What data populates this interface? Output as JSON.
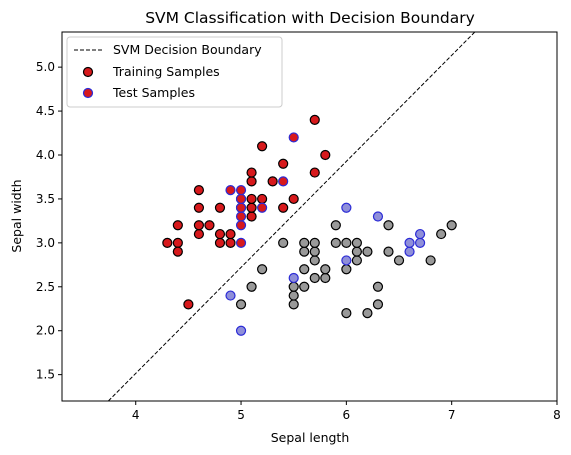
{
  "chart_data": {
    "type": "scatter",
    "title": "SVM Classification with Decision Boundary",
    "xlabel": "Sepal length",
    "ylabel": "Sepal width",
    "xlim": [
      3.3,
      8.0
    ],
    "ylim": [
      1.2,
      5.4
    ],
    "xticks": [
      4,
      5,
      6,
      7,
      8
    ],
    "yticks": [
      1.5,
      2.0,
      2.5,
      3.0,
      3.5,
      4.0,
      4.5,
      5.0
    ],
    "grid": false,
    "legend_position": "top-left",
    "decision_boundary": {
      "name": "SVM Decision Boundary",
      "style": "dashed",
      "color": "#000000",
      "points": [
        [
          3.74,
          1.2
        ],
        [
          7.22,
          5.4
        ]
      ]
    },
    "series": [
      {
        "name": "Training Samples",
        "edge_color": "#000000",
        "classes": [
          {
            "color": "#d7191c",
            "points": [
              [
                4.3,
                3.0
              ],
              [
                4.4,
                3.0
              ],
              [
                4.4,
                2.9
              ],
              [
                4.4,
                3.2
              ],
              [
                4.5,
                2.3
              ],
              [
                4.6,
                3.1
              ],
              [
                4.6,
                3.2
              ],
              [
                4.6,
                3.4
              ],
              [
                4.6,
                3.6
              ],
              [
                4.7,
                3.2
              ],
              [
                4.8,
                3.0
              ],
              [
                4.8,
                3.1
              ],
              [
                4.8,
                3.4
              ],
              [
                4.9,
                3.0
              ],
              [
                4.9,
                3.1
              ],
              [
                5.0,
                3.4
              ],
              [
                5.0,
                3.5
              ],
              [
                5.1,
                3.3
              ],
              [
                5.1,
                3.4
              ],
              [
                5.1,
                3.5
              ],
              [
                5.1,
                3.7
              ],
              [
                5.1,
                3.8
              ],
              [
                5.2,
                3.5
              ],
              [
                5.2,
                4.1
              ],
              [
                5.3,
                3.7
              ],
              [
                5.4,
                3.4
              ],
              [
                5.4,
                3.9
              ],
              [
                5.5,
                3.5
              ],
              [
                5.7,
                3.8
              ],
              [
                5.7,
                4.4
              ],
              [
                5.8,
                4.0
              ]
            ]
          },
          {
            "color": "#999999",
            "points": [
              [
                5.0,
                2.3
              ],
              [
                5.1,
                2.5
              ],
              [
                5.2,
                2.7
              ],
              [
                5.4,
                3.0
              ],
              [
                5.5,
                2.3
              ],
              [
                5.5,
                2.4
              ],
              [
                5.5,
                2.5
              ],
              [
                5.6,
                2.5
              ],
              [
                5.6,
                2.7
              ],
              [
                5.6,
                2.9
              ],
              [
                5.6,
                3.0
              ],
              [
                5.7,
                2.6
              ],
              [
                5.7,
                2.8
              ],
              [
                5.7,
                2.9
              ],
              [
                5.7,
                3.0
              ],
              [
                5.8,
                2.6
              ],
              [
                5.8,
                2.7
              ],
              [
                5.9,
                3.0
              ],
              [
                5.9,
                3.2
              ],
              [
                6.0,
                2.2
              ],
              [
                6.0,
                2.7
              ],
              [
                6.0,
                3.0
              ],
              [
                6.1,
                2.8
              ],
              [
                6.1,
                2.9
              ],
              [
                6.1,
                3.0
              ],
              [
                6.2,
                2.2
              ],
              [
                6.2,
                2.9
              ],
              [
                6.3,
                2.3
              ],
              [
                6.3,
                2.5
              ],
              [
                6.4,
                2.9
              ],
              [
                6.4,
                3.2
              ],
              [
                6.5,
                2.8
              ],
              [
                6.8,
                2.8
              ],
              [
                6.9,
                3.1
              ],
              [
                7.0,
                3.2
              ]
            ]
          }
        ]
      },
      {
        "name": "Test Samples",
        "edge_color": "#2b2bd6",
        "classes": [
          {
            "color": "#d7191c",
            "points": [
              [
                4.9,
                3.6
              ],
              [
                5.0,
                3.0
              ],
              [
                5.0,
                3.2
              ],
              [
                5.0,
                3.3
              ],
              [
                5.0,
                3.4
              ],
              [
                5.0,
                3.5
              ],
              [
                5.0,
                3.6
              ],
              [
                5.2,
                3.4
              ],
              [
                5.4,
                3.7
              ],
              [
                5.5,
                4.2
              ]
            ]
          },
          {
            "color": "#8f8fd9",
            "points": [
              [
                4.9,
                2.4
              ],
              [
                5.0,
                2.0
              ],
              [
                5.5,
                2.6
              ],
              [
                6.0,
                2.8
              ],
              [
                6.0,
                3.4
              ],
              [
                6.3,
                3.3
              ],
              [
                6.6,
                2.9
              ],
              [
                6.6,
                3.0
              ],
              [
                6.7,
                3.0
              ],
              [
                6.7,
                3.1
              ]
            ]
          }
        ]
      }
    ]
  }
}
